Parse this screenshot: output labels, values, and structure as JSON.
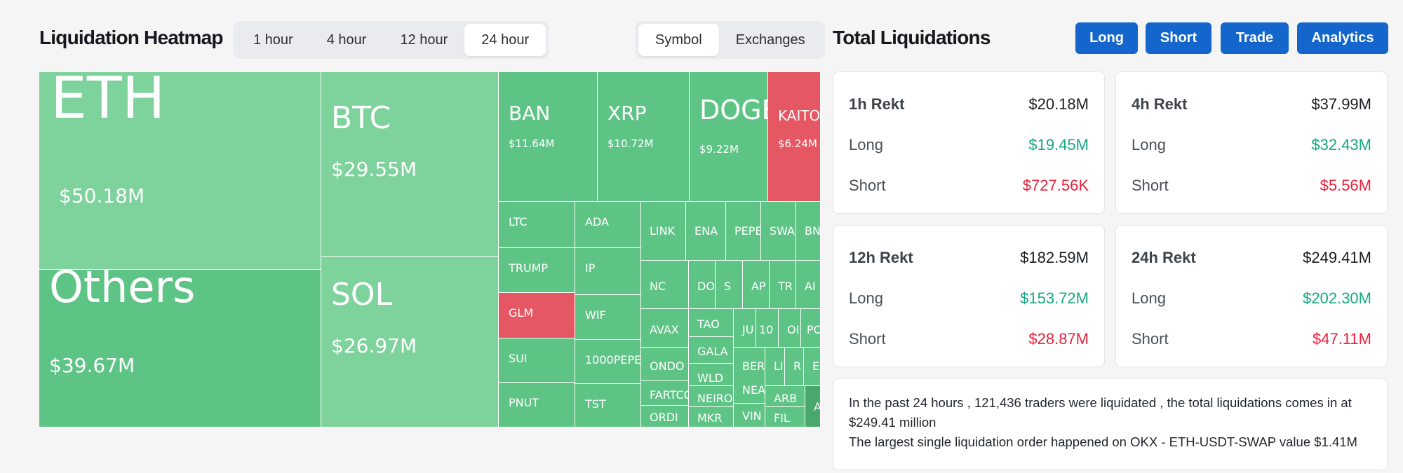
{
  "heatmap": {
    "title": "Liquidation Heatmap",
    "time_options": [
      "1 hour",
      "4 hour",
      "12 hour",
      "24 hour"
    ],
    "time_selected": "24 hour",
    "view_options": [
      "Symbol",
      "Exchanges"
    ],
    "view_selected": "Symbol",
    "colors": {
      "long": "#5ec485",
      "long_light": "#7ed29c",
      "short": "#e55763",
      "dark": "#49a86c"
    },
    "tiles": [
      {
        "symbol": "ETH",
        "value": "$50.18M"
      },
      {
        "symbol": "Others",
        "value": "$39.67M"
      },
      {
        "symbol": "BTC",
        "value": "$29.55M"
      },
      {
        "symbol": "SOL",
        "value": "$26.97M"
      },
      {
        "symbol": "BAN",
        "value": "$11.64M"
      },
      {
        "symbol": "XRP",
        "value": "$10.72M"
      },
      {
        "symbol": "DOGE",
        "value": "$9.22M"
      },
      {
        "symbol": "KAITO",
        "value": "$6.24M"
      },
      {
        "symbol": "LTC"
      },
      {
        "symbol": "ADA"
      },
      {
        "symbol": "TRUMP"
      },
      {
        "symbol": "IP"
      },
      {
        "symbol": "GLM"
      },
      {
        "symbol": "WIF"
      },
      {
        "symbol": "SUI"
      },
      {
        "symbol": "1000PEPE"
      },
      {
        "symbol": "PNUT"
      },
      {
        "symbol": "TST"
      },
      {
        "symbol": "LINK"
      },
      {
        "symbol": "ENA"
      },
      {
        "symbol": "PEPE"
      },
      {
        "symbol": "SWA"
      },
      {
        "symbol": "BNB"
      },
      {
        "symbol": "NC"
      },
      {
        "symbol": "DO"
      },
      {
        "symbol": "S"
      },
      {
        "symbol": "AP"
      },
      {
        "symbol": "TR"
      },
      {
        "symbol": "AI"
      },
      {
        "symbol": "AVAX"
      },
      {
        "symbol": "TAO"
      },
      {
        "symbol": "JU"
      },
      {
        "symbol": "10"
      },
      {
        "symbol": "OI"
      },
      {
        "symbol": "PO"
      },
      {
        "symbol": "ONDO"
      },
      {
        "symbol": "GALA"
      },
      {
        "symbol": "BER"
      },
      {
        "symbol": "LI"
      },
      {
        "symbol": "R"
      },
      {
        "symbol": "E"
      },
      {
        "symbol": "FARTCO"
      },
      {
        "symbol": "WLD"
      },
      {
        "symbol": "NEA"
      },
      {
        "symbol": "ARB"
      },
      {
        "symbol": "NEIRO"
      },
      {
        "symbol": "FIL"
      },
      {
        "symbol": "ORDI"
      },
      {
        "symbol": "MKR"
      },
      {
        "symbol": "VIN"
      },
      {
        "symbol": "A"
      }
    ]
  },
  "total": {
    "title": "Total Liquidations",
    "buttons": [
      "Long",
      "Short",
      "Trade",
      "Analytics"
    ],
    "cards": [
      {
        "label": "1h Rekt",
        "total": "$20.18M",
        "long_label": "Long",
        "long": "$19.45M",
        "short_label": "Short",
        "short": "$727.56K"
      },
      {
        "label": "4h Rekt",
        "total": "$37.99M",
        "long_label": "Long",
        "long": "$32.43M",
        "short_label": "Short",
        "short": "$5.56M"
      },
      {
        "label": "12h Rekt",
        "total": "$182.59M",
        "long_label": "Long",
        "long": "$153.72M",
        "short_label": "Short",
        "short": "$28.87M"
      },
      {
        "label": "24h Rekt",
        "total": "$249.41M",
        "long_label": "Long",
        "long": "$202.30M",
        "short_label": "Short",
        "short": "$47.11M"
      }
    ],
    "summary_line1": "In the past 24 hours , 121,436 traders were liquidated , the total liquidations comes in at $249.41 million",
    "summary_line2": "The largest single liquidation order happened on OKX - ETH-USDT-SWAP value $1.41M"
  }
}
